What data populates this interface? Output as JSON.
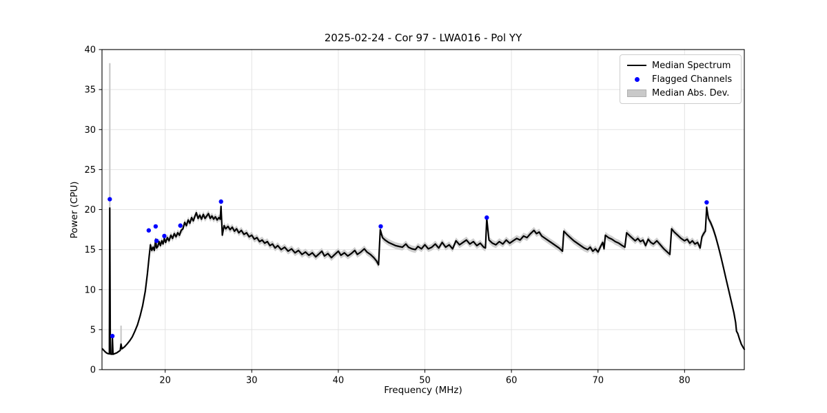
{
  "chart_data": {
    "type": "line",
    "title": "2025-02-24 - Cor 97 - LWA016 - Pol YY",
    "xlabel": "Frequency (MHz)",
    "ylabel": "Power (CPU)",
    "xlim": [
      12.7,
      86.9
    ],
    "ylim": [
      0,
      40
    ],
    "xticks": [
      20,
      30,
      40,
      50,
      60,
      70,
      80
    ],
    "yticks": [
      0,
      5,
      10,
      15,
      20,
      25,
      30,
      35,
      40
    ],
    "grid": true,
    "legend_position": "upper right",
    "colors": {
      "median_spectrum": "#000000",
      "flagged_channels": "#0000ff",
      "mad_band": "#c8c8c8",
      "grid": "#e3e3e3",
      "spine": "#000000",
      "text": "#000000"
    },
    "legend": {
      "entries": [
        {
          "label": "Median Spectrum",
          "marker": "line"
        },
        {
          "label": "Flagged Channels",
          "marker": "dot"
        },
        {
          "label": "Median Abs. Dev.",
          "marker": "patch"
        }
      ]
    },
    "mad_band": {
      "default_mad": 0.42,
      "edge_mad": 0.07,
      "wide_from": 17.9,
      "wide_to": 84.2
    },
    "mad_spikes": [
      {
        "x": 13.6,
        "from": 1.9,
        "to": 38.3
      },
      {
        "x": 14.9,
        "from": 2.5,
        "to": 5.5
      }
    ],
    "flagged_channels": [
      [
        13.6,
        21.3
      ],
      [
        13.9,
        4.2
      ],
      [
        18.1,
        17.4
      ],
      [
        18.9,
        17.9
      ],
      [
        19.0,
        16.1
      ],
      [
        19.9,
        16.7
      ],
      [
        21.75,
        18.0
      ],
      [
        26.45,
        21.0
      ],
      [
        44.9,
        17.9
      ],
      [
        57.15,
        19.0
      ],
      [
        82.55,
        20.9
      ]
    ],
    "median_spectrum": [
      [
        12.75,
        2.6
      ],
      [
        13.0,
        2.3
      ],
      [
        13.2,
        2.1
      ],
      [
        13.4,
        2.0
      ],
      [
        13.55,
        1.97
      ],
      [
        13.6,
        20.2
      ],
      [
        13.66,
        1.95
      ],
      [
        13.85,
        1.93
      ],
      [
        13.9,
        4.0
      ],
      [
        13.97,
        1.92
      ],
      [
        14.15,
        2.0
      ],
      [
        14.4,
        2.1
      ],
      [
        14.6,
        2.25
      ],
      [
        14.8,
        2.4
      ],
      [
        14.9,
        3.2
      ],
      [
        15.0,
        2.6
      ],
      [
        15.3,
        2.85
      ],
      [
        15.6,
        3.2
      ],
      [
        15.9,
        3.6
      ],
      [
        16.2,
        4.1
      ],
      [
        16.5,
        4.8
      ],
      [
        16.8,
        5.6
      ],
      [
        17.1,
        6.7
      ],
      [
        17.4,
        8.0
      ],
      [
        17.7,
        9.8
      ],
      [
        17.95,
        12.0
      ],
      [
        18.15,
        14.2
      ],
      [
        18.3,
        15.6
      ],
      [
        18.45,
        14.9
      ],
      [
        18.6,
        15.3
      ],
      [
        18.75,
        14.9
      ],
      [
        18.9,
        16.3
      ],
      [
        19.0,
        15.2
      ],
      [
        19.15,
        15.4
      ],
      [
        19.3,
        16.0
      ],
      [
        19.45,
        15.5
      ],
      [
        19.6,
        16.1
      ],
      [
        19.75,
        15.7
      ],
      [
        19.9,
        16.4
      ],
      [
        20.05,
        15.9
      ],
      [
        20.25,
        16.5
      ],
      [
        20.45,
        16.1
      ],
      [
        20.65,
        16.8
      ],
      [
        20.85,
        16.4
      ],
      [
        21.05,
        17.0
      ],
      [
        21.25,
        16.6
      ],
      [
        21.45,
        17.1
      ],
      [
        21.65,
        16.8
      ],
      [
        21.85,
        17.4
      ],
      [
        22.05,
        17.6
      ],
      [
        22.25,
        18.4
      ],
      [
        22.45,
        18.0
      ],
      [
        22.65,
        18.7
      ],
      [
        22.85,
        18.3
      ],
      [
        23.05,
        19.0
      ],
      [
        23.25,
        18.6
      ],
      [
        23.45,
        19.2
      ],
      [
        23.6,
        19.6
      ],
      [
        23.8,
        18.9
      ],
      [
        24.0,
        19.3
      ],
      [
        24.2,
        18.8
      ],
      [
        24.4,
        19.4
      ],
      [
        24.6,
        18.9
      ],
      [
        24.8,
        19.2
      ],
      [
        25.0,
        19.5
      ],
      [
        25.2,
        18.9
      ],
      [
        25.4,
        19.2
      ],
      [
        25.6,
        18.8
      ],
      [
        25.8,
        19.1
      ],
      [
        26.0,
        18.7
      ],
      [
        26.2,
        19.0
      ],
      [
        26.35,
        18.8
      ],
      [
        26.45,
        20.4
      ],
      [
        26.6,
        16.8
      ],
      [
        26.8,
        18.0
      ],
      [
        27.0,
        17.6
      ],
      [
        27.25,
        17.9
      ],
      [
        27.5,
        17.5
      ],
      [
        27.75,
        17.8
      ],
      [
        28.0,
        17.3
      ],
      [
        28.25,
        17.6
      ],
      [
        28.5,
        17.1
      ],
      [
        28.8,
        17.4
      ],
      [
        29.1,
        16.9
      ],
      [
        29.4,
        17.1
      ],
      [
        29.7,
        16.6
      ],
      [
        30.0,
        16.8
      ],
      [
        30.3,
        16.3
      ],
      [
        30.6,
        16.5
      ],
      [
        30.9,
        16.0
      ],
      [
        31.2,
        16.2
      ],
      [
        31.5,
        15.8
      ],
      [
        31.8,
        16.0
      ],
      [
        32.1,
        15.5
      ],
      [
        32.4,
        15.7
      ],
      [
        32.7,
        15.2
      ],
      [
        33.0,
        15.5
      ],
      [
        33.4,
        15.0
      ],
      [
        33.8,
        15.3
      ],
      [
        34.2,
        14.8
      ],
      [
        34.6,
        15.1
      ],
      [
        35.0,
        14.6
      ],
      [
        35.4,
        14.9
      ],
      [
        35.8,
        14.4
      ],
      [
        36.2,
        14.7
      ],
      [
        36.6,
        14.3
      ],
      [
        37.0,
        14.6
      ],
      [
        37.4,
        14.1
      ],
      [
        37.8,
        14.5
      ],
      [
        38.1,
        14.8
      ],
      [
        38.4,
        14.2
      ],
      [
        38.8,
        14.5
      ],
      [
        39.2,
        14.0
      ],
      [
        39.6,
        14.4
      ],
      [
        40.0,
        14.8
      ],
      [
        40.3,
        14.3
      ],
      [
        40.7,
        14.6
      ],
      [
        41.1,
        14.2
      ],
      [
        41.5,
        14.5
      ],
      [
        41.9,
        14.9
      ],
      [
        42.2,
        14.4
      ],
      [
        42.6,
        14.7
      ],
      [
        43.0,
        15.1
      ],
      [
        43.3,
        14.7
      ],
      [
        43.7,
        14.4
      ],
      [
        44.1,
        14.0
      ],
      [
        44.4,
        13.6
      ],
      [
        44.65,
        13.1
      ],
      [
        44.85,
        17.5
      ],
      [
        45.1,
        16.5
      ],
      [
        45.4,
        16.2
      ],
      [
        45.8,
        15.9
      ],
      [
        46.2,
        15.7
      ],
      [
        46.6,
        15.5
      ],
      [
        47.0,
        15.4
      ],
      [
        47.4,
        15.3
      ],
      [
        47.8,
        15.7
      ],
      [
        48.1,
        15.3
      ],
      [
        48.5,
        15.1
      ],
      [
        48.9,
        15.0
      ],
      [
        49.2,
        15.4
      ],
      [
        49.6,
        15.1
      ],
      [
        50.0,
        15.6
      ],
      [
        50.4,
        15.1
      ],
      [
        50.8,
        15.3
      ],
      [
        51.2,
        15.7
      ],
      [
        51.6,
        15.2
      ],
      [
        52.0,
        15.9
      ],
      [
        52.4,
        15.3
      ],
      [
        52.8,
        15.6
      ],
      [
        53.2,
        15.1
      ],
      [
        53.6,
        16.1
      ],
      [
        54.0,
        15.6
      ],
      [
        54.4,
        15.9
      ],
      [
        54.8,
        16.2
      ],
      [
        55.2,
        15.7
      ],
      [
        55.6,
        16.0
      ],
      [
        56.0,
        15.5
      ],
      [
        56.4,
        15.8
      ],
      [
        56.8,
        15.3
      ],
      [
        57.0,
        15.2
      ],
      [
        57.15,
        18.9
      ],
      [
        57.4,
        16.2
      ],
      [
        57.8,
        15.8
      ],
      [
        58.2,
        15.6
      ],
      [
        58.6,
        16.0
      ],
      [
        59.0,
        15.7
      ],
      [
        59.4,
        16.2
      ],
      [
        59.8,
        15.8
      ],
      [
        60.2,
        16.1
      ],
      [
        60.6,
        16.4
      ],
      [
        61.0,
        16.2
      ],
      [
        61.4,
        16.7
      ],
      [
        61.8,
        16.5
      ],
      [
        62.2,
        17.0
      ],
      [
        62.6,
        17.4
      ],
      [
        62.9,
        17.0
      ],
      [
        63.2,
        17.2
      ],
      [
        63.5,
        16.7
      ],
      [
        63.9,
        16.4
      ],
      [
        64.3,
        16.1
      ],
      [
        64.7,
        15.8
      ],
      [
        65.1,
        15.5
      ],
      [
        65.5,
        15.2
      ],
      [
        65.9,
        14.8
      ],
      [
        66.05,
        17.3
      ],
      [
        66.4,
        16.9
      ],
      [
        66.8,
        16.5
      ],
      [
        67.2,
        16.1
      ],
      [
        67.6,
        15.8
      ],
      [
        68.0,
        15.5
      ],
      [
        68.4,
        15.2
      ],
      [
        68.8,
        15.0
      ],
      [
        69.1,
        15.3
      ],
      [
        69.4,
        14.8
      ],
      [
        69.7,
        15.1
      ],
      [
        70.0,
        14.7
      ],
      [
        70.3,
        15.4
      ],
      [
        70.55,
        15.9
      ],
      [
        70.7,
        15.1
      ],
      [
        70.85,
        16.8
      ],
      [
        71.2,
        16.5
      ],
      [
        71.6,
        16.3
      ],
      [
        72.0,
        16.0
      ],
      [
        72.4,
        15.8
      ],
      [
        72.8,
        15.5
      ],
      [
        73.1,
        15.3
      ],
      [
        73.3,
        17.1
      ],
      [
        73.7,
        16.7
      ],
      [
        74.0,
        16.4
      ],
      [
        74.3,
        16.1
      ],
      [
        74.6,
        16.4
      ],
      [
        74.9,
        16.0
      ],
      [
        75.2,
        16.2
      ],
      [
        75.5,
        15.5
      ],
      [
        75.8,
        16.3
      ],
      [
        76.1,
        15.9
      ],
      [
        76.4,
        15.7
      ],
      [
        76.8,
        16.1
      ],
      [
        77.2,
        15.6
      ],
      [
        77.6,
        15.1
      ],
      [
        78.0,
        14.7
      ],
      [
        78.3,
        14.4
      ],
      [
        78.5,
        17.6
      ],
      [
        78.8,
        17.2
      ],
      [
        79.2,
        16.8
      ],
      [
        79.6,
        16.4
      ],
      [
        80.0,
        16.1
      ],
      [
        80.3,
        16.3
      ],
      [
        80.6,
        15.8
      ],
      [
        80.9,
        16.1
      ],
      [
        81.2,
        15.7
      ],
      [
        81.5,
        15.9
      ],
      [
        81.8,
        15.2
      ],
      [
        82.0,
        16.6
      ],
      [
        82.2,
        17.0
      ],
      [
        82.4,
        17.3
      ],
      [
        82.55,
        20.3
      ],
      [
        82.75,
        18.9
      ],
      [
        83.0,
        18.4
      ],
      [
        83.3,
        17.6
      ],
      [
        83.6,
        16.6
      ],
      [
        83.9,
        15.4
      ],
      [
        84.2,
        14.1
      ],
      [
        84.5,
        12.7
      ],
      [
        84.8,
        11.3
      ],
      [
        85.1,
        9.9
      ],
      [
        85.4,
        8.5
      ],
      [
        85.7,
        7.1
      ],
      [
        85.9,
        5.9
      ],
      [
        86.0,
        4.8
      ],
      [
        86.15,
        4.5
      ],
      [
        86.35,
        3.8
      ],
      [
        86.55,
        3.2
      ],
      [
        86.75,
        2.8
      ],
      [
        86.9,
        2.55
      ]
    ]
  }
}
